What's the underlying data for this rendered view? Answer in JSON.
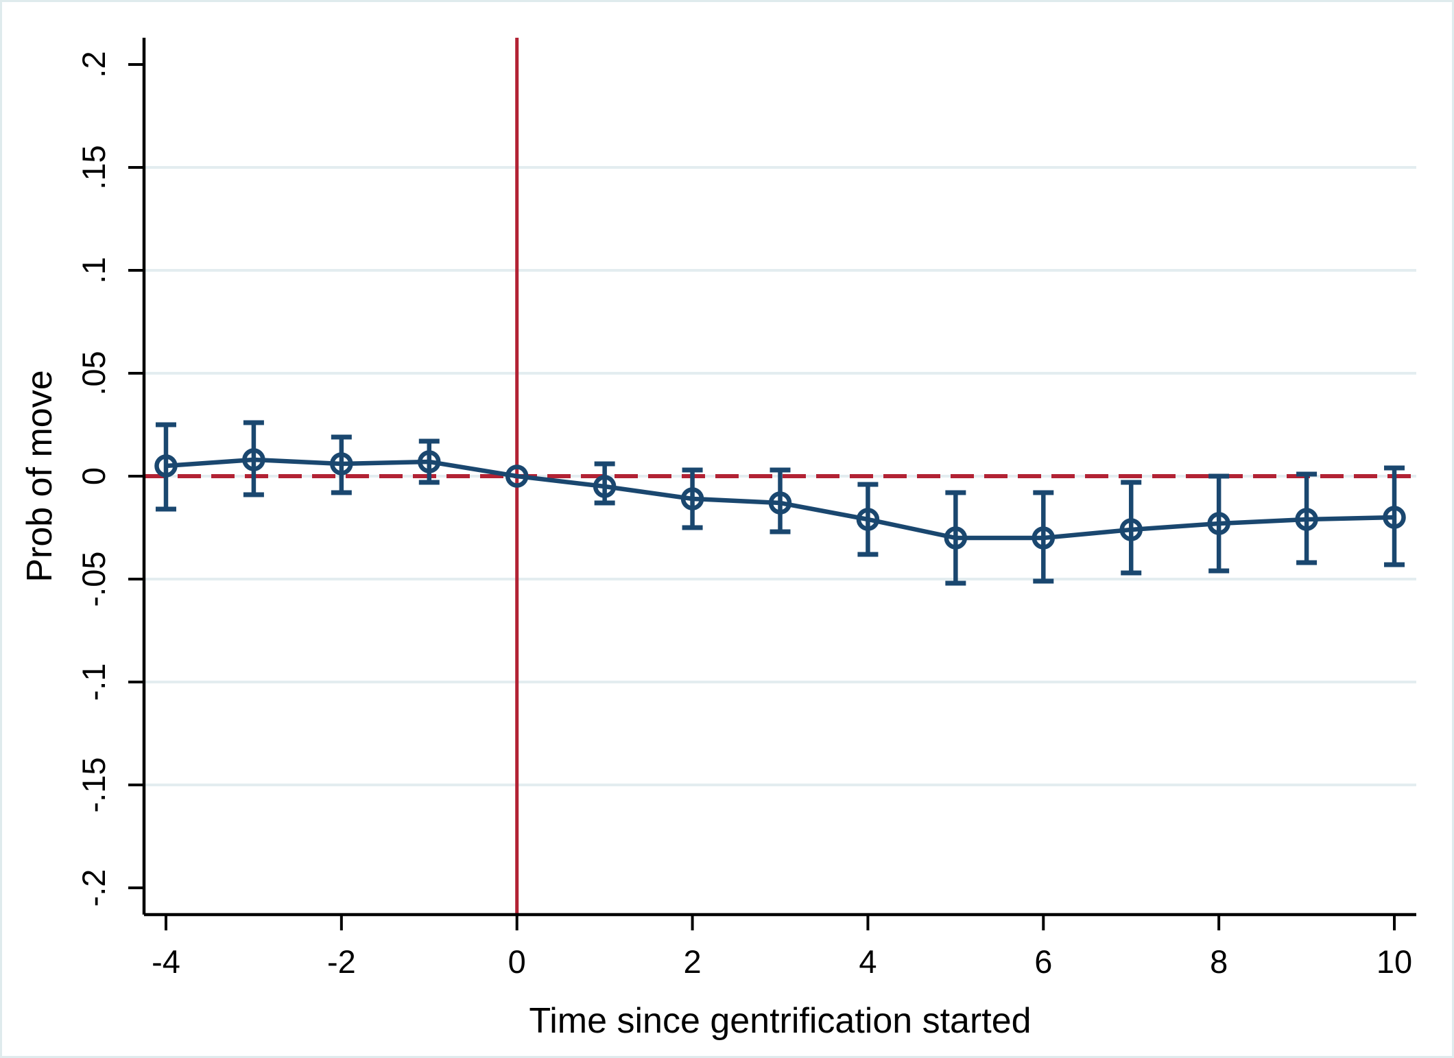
{
  "chart_data": {
    "type": "line",
    "title": "",
    "xlabel": "Time since gentrification started",
    "ylabel": "Prob of move",
    "x": [
      -4,
      -3,
      -2,
      -1,
      0,
      1,
      2,
      3,
      4,
      5,
      6,
      7,
      8,
      9,
      10
    ],
    "series": [
      {
        "name": "Prob of move",
        "values": [
          0.005,
          0.008,
          0.006,
          0.007,
          0.0,
          -0.005,
          -0.011,
          -0.013,
          -0.021,
          -0.03,
          -0.03,
          -0.026,
          -0.023,
          -0.021,
          -0.02
        ],
        "ci_low": [
          -0.016,
          -0.009,
          -0.008,
          -0.003,
          null,
          -0.013,
          -0.025,
          -0.027,
          -0.038,
          -0.052,
          -0.051,
          -0.047,
          -0.046,
          -0.042,
          -0.043
        ],
        "ci_high": [
          0.025,
          0.026,
          0.019,
          0.017,
          null,
          0.006,
          0.003,
          0.003,
          -0.004,
          -0.008,
          -0.008,
          -0.003,
          0.0,
          0.001,
          0.004
        ]
      }
    ],
    "xlim": [
      -4.25,
      10.25
    ],
    "ylim": [
      -0.213,
      0.213
    ],
    "xticks": [
      -4,
      -2,
      0,
      2,
      4,
      6,
      8,
      10
    ],
    "xtick_labels": [
      "-4",
      "-2",
      "0",
      "2",
      "4",
      "6",
      "8",
      "10"
    ],
    "yticks": [
      0.2,
      0.15,
      0.1,
      0.05,
      0,
      -0.05,
      -0.1,
      -0.15,
      -0.2
    ],
    "ytick_labels": [
      ".2",
      ".15",
      ".1",
      ".05",
      "0",
      "-.05",
      "-.1",
      "-.15",
      "-.2"
    ],
    "grid_yticks": [
      0.15,
      0.1,
      0.05,
      0,
      -0.05,
      -0.1,
      -0.15
    ],
    "grid": "horizontal",
    "legend_position": "none",
    "reference_lines": {
      "vertical_x": 0,
      "horizontal_y": 0,
      "horizontal_style": "dashed"
    },
    "colors": {
      "series": "#1a476f",
      "reference": "#b22234",
      "grid": "#e3edf0",
      "axis": "#000000",
      "background": "#ffffff",
      "canvas_border": "#dfebed"
    }
  }
}
